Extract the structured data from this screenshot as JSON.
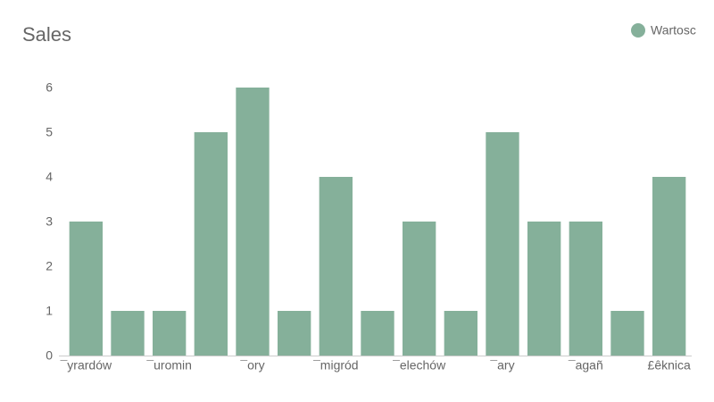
{
  "chart_data": {
    "type": "bar",
    "title": "Sales",
    "categories": [
      "¯yrardów",
      null,
      "¯uromin",
      null,
      "¯ory",
      null,
      "¯migród",
      null,
      "¯elechów",
      null,
      "¯ary",
      null,
      "¯agañ",
      null,
      "£êknica"
    ],
    "series": [
      {
        "name": "Wartosc",
        "color": "#85b09a",
        "values": [
          3,
          1,
          1,
          5,
          6,
          1,
          4,
          1,
          3,
          1,
          5,
          3,
          3,
          1,
          4
        ]
      }
    ],
    "ylim": [
      0,
      6
    ],
    "yticks": [
      0,
      1,
      2,
      3,
      4,
      5,
      6
    ],
    "grid": false,
    "legend": "top-right"
  }
}
